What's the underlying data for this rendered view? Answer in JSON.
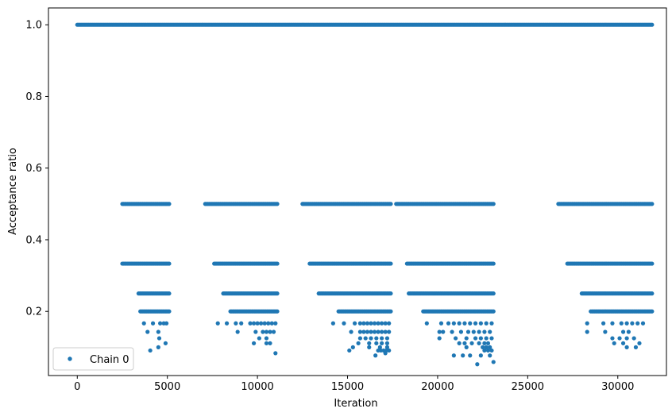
{
  "chart_data": {
    "type": "scatter",
    "xlabel": "Iteration",
    "ylabel": "Acceptance ratio",
    "xlim": [
      -1600,
      32700
    ],
    "ylim": [
      0.021,
      1.047
    ],
    "xticks": [
      0,
      5000,
      10000,
      15000,
      20000,
      25000,
      30000
    ],
    "xtick_labels": [
      "0",
      "5000",
      "10000",
      "15000",
      "20000",
      "25000",
      "30000"
    ],
    "yticks": [
      0.2,
      0.4,
      0.6,
      0.8,
      1.0
    ],
    "ytick_labels": [
      "0.2",
      "0.4",
      "0.6",
      "0.8",
      "1.0"
    ],
    "grid": false,
    "legend": {
      "position": "lower-left",
      "entries": [
        "Chain 0"
      ]
    },
    "color": "#1f77b4",
    "series": [
      {
        "name": "Chain 0",
        "levels": [
          {
            "y": 1.0,
            "segments": [
              [
                0,
                31900
              ]
            ]
          },
          {
            "y": 0.5,
            "segments": [
              [
                2500,
                5100
              ],
              [
                7100,
                11100
              ],
              [
                12500,
                17400
              ],
              [
                17700,
                23100
              ],
              [
                26700,
                31900
              ]
            ]
          },
          {
            "y": 0.3333,
            "segments": [
              [
                2500,
                5100
              ],
              [
                7600,
                11100
              ],
              [
                12900,
                17400
              ],
              [
                18300,
                23100
              ],
              [
                27200,
                31900
              ]
            ]
          },
          {
            "y": 0.25,
            "segments": [
              [
                3400,
                5100
              ],
              [
                8100,
                11100
              ],
              [
                13400,
                17400
              ],
              [
                18400,
                23100
              ],
              [
                28000,
                31900
              ]
            ]
          },
          {
            "y": 0.2,
            "segments": [
              [
                3500,
                5100
              ],
              [
                8500,
                11100
              ],
              [
                14500,
                17400
              ],
              [
                19200,
                23100
              ],
              [
                28500,
                31900
              ]
            ]
          }
        ],
        "points": [
          [
            3700,
            0.1667
          ],
          [
            4200,
            0.1667
          ],
          [
            4600,
            0.1667
          ],
          [
            4800,
            0.1667
          ],
          [
            4950,
            0.1667
          ],
          [
            3900,
            0.1429
          ],
          [
            4500,
            0.1429
          ],
          [
            4550,
            0.125
          ],
          [
            4900,
            0.1111
          ],
          [
            4500,
            0.1
          ],
          [
            4050,
            0.0909
          ],
          [
            7800,
            0.1667
          ],
          [
            8300,
            0.1667
          ],
          [
            8800,
            0.1667
          ],
          [
            9100,
            0.1667
          ],
          [
            9600,
            0.1667
          ],
          [
            9800,
            0.1667
          ],
          [
            10000,
            0.1667
          ],
          [
            10200,
            0.1667
          ],
          [
            10400,
            0.1667
          ],
          [
            10600,
            0.1667
          ],
          [
            10800,
            0.1667
          ],
          [
            11000,
            0.1667
          ],
          [
            8900,
            0.1429
          ],
          [
            9900,
            0.1429
          ],
          [
            10300,
            0.1429
          ],
          [
            10500,
            0.1429
          ],
          [
            10700,
            0.1429
          ],
          [
            10900,
            0.1429
          ],
          [
            10100,
            0.125
          ],
          [
            10500,
            0.125
          ],
          [
            9800,
            0.1111
          ],
          [
            10500,
            0.1111
          ],
          [
            10700,
            0.1111
          ],
          [
            11000,
            0.0833
          ],
          [
            14200,
            0.1667
          ],
          [
            14800,
            0.1667
          ],
          [
            15400,
            0.1667
          ],
          [
            15700,
            0.1667
          ],
          [
            15900,
            0.1667
          ],
          [
            16100,
            0.1667
          ],
          [
            16300,
            0.1667
          ],
          [
            16500,
            0.1667
          ],
          [
            16700,
            0.1667
          ],
          [
            16900,
            0.1667
          ],
          [
            17100,
            0.1667
          ],
          [
            17300,
            0.1667
          ],
          [
            15200,
            0.1429
          ],
          [
            15700,
            0.1429
          ],
          [
            15900,
            0.1429
          ],
          [
            16100,
            0.1429
          ],
          [
            16300,
            0.1429
          ],
          [
            16500,
            0.1429
          ],
          [
            16700,
            0.1429
          ],
          [
            16900,
            0.1429
          ],
          [
            17100,
            0.1429
          ],
          [
            17300,
            0.1429
          ],
          [
            15700,
            0.125
          ],
          [
            16000,
            0.125
          ],
          [
            16300,
            0.125
          ],
          [
            16600,
            0.125
          ],
          [
            16900,
            0.125
          ],
          [
            17200,
            0.125
          ],
          [
            15600,
            0.1111
          ],
          [
            16200,
            0.1111
          ],
          [
            16600,
            0.1111
          ],
          [
            16900,
            0.1111
          ],
          [
            17200,
            0.1111
          ],
          [
            15300,
            0.1
          ],
          [
            16200,
            0.1
          ],
          [
            16800,
            0.1
          ],
          [
            17200,
            0.1
          ],
          [
            15100,
            0.0909
          ],
          [
            16700,
            0.0909
          ],
          [
            16850,
            0.0909
          ],
          [
            17000,
            0.0909
          ],
          [
            17150,
            0.0909
          ],
          [
            17300,
            0.0909
          ],
          [
            16550,
            0.0769
          ],
          [
            17100,
            0.0833
          ],
          [
            19400,
            0.1667
          ],
          [
            20200,
            0.1667
          ],
          [
            20600,
            0.1667
          ],
          [
            20900,
            0.1667
          ],
          [
            21200,
            0.1667
          ],
          [
            21500,
            0.1667
          ],
          [
            21800,
            0.1667
          ],
          [
            22100,
            0.1667
          ],
          [
            22400,
            0.1667
          ],
          [
            22700,
            0.1667
          ],
          [
            23000,
            0.1667
          ],
          [
            20100,
            0.1429
          ],
          [
            20300,
            0.1429
          ],
          [
            20800,
            0.1429
          ],
          [
            21300,
            0.1429
          ],
          [
            21700,
            0.1429
          ],
          [
            22000,
            0.1429
          ],
          [
            22300,
            0.1429
          ],
          [
            22600,
            0.1429
          ],
          [
            22900,
            0.1429
          ],
          [
            20100,
            0.125
          ],
          [
            21000,
            0.125
          ],
          [
            21600,
            0.125
          ],
          [
            22100,
            0.125
          ],
          [
            22400,
            0.125
          ],
          [
            22700,
            0.125
          ],
          [
            23000,
            0.125
          ],
          [
            21200,
            0.1111
          ],
          [
            21500,
            0.1111
          ],
          [
            21900,
            0.1111
          ],
          [
            22300,
            0.1111
          ],
          [
            22600,
            0.1111
          ],
          [
            22800,
            0.1111
          ],
          [
            21600,
            0.1
          ],
          [
            22500,
            0.1
          ],
          [
            22700,
            0.1
          ],
          [
            22900,
            0.1
          ],
          [
            22600,
            0.0909
          ],
          [
            22800,
            0.0909
          ],
          [
            23000,
            0.0909
          ],
          [
            20900,
            0.0769
          ],
          [
            21400,
            0.0769
          ],
          [
            21800,
            0.0769
          ],
          [
            22400,
            0.0769
          ],
          [
            22900,
            0.0769
          ],
          [
            22200,
            0.0526
          ],
          [
            23100,
            0.0588
          ],
          [
            28300,
            0.1667
          ],
          [
            29200,
            0.1667
          ],
          [
            29700,
            0.1667
          ],
          [
            30200,
            0.1667
          ],
          [
            30500,
            0.1667
          ],
          [
            30800,
            0.1667
          ],
          [
            31100,
            0.1667
          ],
          [
            31400,
            0.1667
          ],
          [
            28300,
            0.1429
          ],
          [
            29300,
            0.1429
          ],
          [
            30300,
            0.1429
          ],
          [
            30600,
            0.1429
          ],
          [
            29700,
            0.125
          ],
          [
            30100,
            0.125
          ],
          [
            30500,
            0.125
          ],
          [
            30900,
            0.125
          ],
          [
            29800,
            0.1111
          ],
          [
            30300,
            0.1111
          ],
          [
            31200,
            0.1111
          ],
          [
            30500,
            0.1
          ],
          [
            31000,
            0.1
          ]
        ]
      }
    ]
  }
}
